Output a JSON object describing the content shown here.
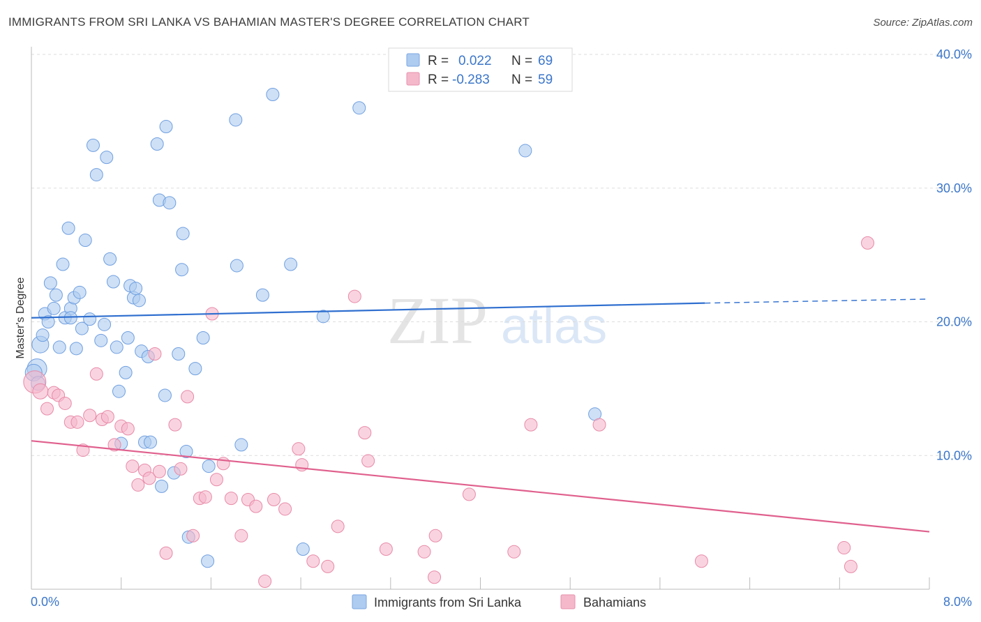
{
  "header": {
    "title": "IMMIGRANTS FROM SRI LANKA VS BAHAMIAN MASTER'S DEGREE CORRELATION CHART",
    "source": "Source: ZipAtlas.com"
  },
  "watermark": {
    "zip": "ZIP",
    "atlas": "atlas"
  },
  "stats_legend": {
    "r_label": "R =",
    "n_label": "N =",
    "rows": [
      {
        "r": "0.022",
        "n": "69",
        "color": "#aecbf0"
      },
      {
        "r": "-0.283",
        "n": "59",
        "color": "#f5b8cb"
      }
    ]
  },
  "chart_data": {
    "type": "scatter",
    "title": "IMMIGRANTS FROM SRI LANKA VS BAHAMIAN MASTER'S DEGREE CORRELATION CHART",
    "xlabel": "",
    "ylabel": "Master's Degree",
    "xlim": [
      0,
      8
    ],
    "ylim": [
      0,
      40
    ],
    "x_tick_labels": [
      "0.0%",
      "8.0%"
    ],
    "y_ticks": [
      10,
      20,
      30,
      40
    ],
    "y_tick_labels": [
      "10.0%",
      "20.0%",
      "30.0%",
      "40.0%"
    ],
    "grid": true,
    "legend_position": "bottom",
    "series": [
      {
        "name": "Immigrants from Sri Lanka",
        "color": "#6f9fe0",
        "fill": "#aecbf0",
        "trend": {
          "x": [
            0.0,
            6.0,
            8.0
          ],
          "y": [
            20.3,
            21.4,
            21.7
          ],
          "solid_until": 6.0,
          "color": "#2f6fcf"
        },
        "points": [
          [
            0.05,
            16.5,
            14
          ],
          [
            0.08,
            18.3,
            12
          ],
          [
            0.1,
            19.0,
            9
          ],
          [
            0.12,
            20.6,
            9
          ],
          [
            0.15,
            20.0,
            9
          ],
          [
            0.17,
            22.9,
            9
          ],
          [
            0.2,
            21.0,
            9
          ],
          [
            0.22,
            22.0,
            9
          ],
          [
            0.25,
            18.1,
            9
          ],
          [
            0.28,
            24.3,
            9
          ],
          [
            0.3,
            20.3,
            9
          ],
          [
            0.33,
            27.0,
            9
          ],
          [
            0.35,
            21.0,
            9
          ],
          [
            0.38,
            21.8,
            9
          ],
          [
            0.4,
            18.0,
            9
          ],
          [
            0.43,
            22.2,
            9
          ],
          [
            0.45,
            19.5,
            9
          ],
          [
            0.48,
            26.1,
            9
          ],
          [
            0.52,
            20.2,
            9
          ],
          [
            0.55,
            33.2,
            9
          ],
          [
            0.58,
            31.0,
            9
          ],
          [
            0.62,
            18.6,
            9
          ],
          [
            0.65,
            19.8,
            9
          ],
          [
            0.67,
            32.3,
            9
          ],
          [
            0.7,
            24.7,
            9
          ],
          [
            0.73,
            23.0,
            9
          ],
          [
            0.76,
            18.1,
            9
          ],
          [
            0.78,
            14.8,
            9
          ],
          [
            0.8,
            10.9,
            9
          ],
          [
            0.84,
            16.2,
            9
          ],
          [
            0.86,
            18.8,
            9
          ],
          [
            0.88,
            22.7,
            9
          ],
          [
            0.91,
            21.8,
            9
          ],
          [
            0.93,
            22.5,
            9
          ],
          [
            0.96,
            21.6,
            9
          ],
          [
            0.98,
            17.8,
            9
          ],
          [
            1.01,
            11.0,
            9
          ],
          [
            1.04,
            17.4,
            9
          ],
          [
            1.06,
            11.0,
            9
          ],
          [
            1.12,
            33.3,
            9
          ],
          [
            1.14,
            29.1,
            9
          ],
          [
            1.16,
            7.7,
            9
          ],
          [
            1.19,
            14.5,
            9
          ],
          [
            1.2,
            34.6,
            9
          ],
          [
            1.23,
            28.9,
            9
          ],
          [
            1.27,
            8.7,
            9
          ],
          [
            1.31,
            17.6,
            9
          ],
          [
            1.34,
            23.9,
            9
          ],
          [
            1.35,
            26.6,
            9
          ],
          [
            1.38,
            10.3,
            9
          ],
          [
            1.4,
            3.9,
            9
          ],
          [
            1.46,
            16.5,
            9
          ],
          [
            1.53,
            18.8,
            9
          ],
          [
            1.57,
            2.1,
            9
          ],
          [
            1.58,
            9.2,
            9
          ],
          [
            1.82,
            35.1,
            9
          ],
          [
            1.83,
            24.2,
            9
          ],
          [
            1.87,
            10.8,
            9
          ],
          [
            2.06,
            22.0,
            9
          ],
          [
            2.15,
            37.0,
            9
          ],
          [
            2.31,
            24.3,
            9
          ],
          [
            2.42,
            3.0,
            9
          ],
          [
            2.6,
            20.4,
            9
          ],
          [
            2.92,
            36.0,
            9
          ],
          [
            4.4,
            32.8,
            9
          ],
          [
            5.02,
            13.1,
            9
          ],
          [
            0.02,
            16.2,
            12
          ],
          [
            0.06,
            15.4,
            10
          ],
          [
            0.35,
            20.3,
            9
          ]
        ]
      },
      {
        "name": "Bahamians",
        "color": "#e88aa8",
        "fill": "#f5b8cb",
        "trend": {
          "x": [
            0.0,
            8.0
          ],
          "y": [
            11.1,
            4.3
          ],
          "solid_until": 8.0,
          "color": "#e0608d"
        },
        "points": [
          [
            0.03,
            15.5,
            16
          ],
          [
            0.08,
            14.8,
            11
          ],
          [
            0.14,
            13.5,
            9
          ],
          [
            0.2,
            14.7,
            9
          ],
          [
            0.24,
            14.5,
            9
          ],
          [
            0.3,
            13.9,
            9
          ],
          [
            0.35,
            12.5,
            9
          ],
          [
            0.41,
            12.5,
            9
          ],
          [
            0.46,
            10.4,
            9
          ],
          [
            0.52,
            13.0,
            9
          ],
          [
            0.58,
            16.1,
            9
          ],
          [
            0.63,
            12.7,
            9
          ],
          [
            0.68,
            12.9,
            9
          ],
          [
            0.74,
            10.8,
            9
          ],
          [
            0.8,
            12.2,
            9
          ],
          [
            0.86,
            12.0,
            9
          ],
          [
            0.9,
            9.2,
            9
          ],
          [
            0.95,
            7.8,
            9
          ],
          [
            1.01,
            8.9,
            9
          ],
          [
            1.05,
            8.3,
            9
          ],
          [
            1.1,
            17.6,
            9
          ],
          [
            1.14,
            8.8,
            9
          ],
          [
            1.2,
            2.7,
            9
          ],
          [
            1.28,
            12.3,
            9
          ],
          [
            1.33,
            9.0,
            9
          ],
          [
            1.39,
            14.4,
            9
          ],
          [
            1.44,
            4.0,
            9
          ],
          [
            1.5,
            6.8,
            9
          ],
          [
            1.55,
            6.9,
            9
          ],
          [
            1.61,
            20.6,
            9
          ],
          [
            1.65,
            8.2,
            9
          ],
          [
            1.71,
            9.4,
            9
          ],
          [
            1.78,
            6.8,
            9
          ],
          [
            1.87,
            4.0,
            9
          ],
          [
            1.93,
            6.7,
            9
          ],
          [
            2.0,
            6.2,
            9
          ],
          [
            2.08,
            0.6,
            9
          ],
          [
            2.16,
            6.7,
            9
          ],
          [
            2.26,
            6.0,
            9
          ],
          [
            2.38,
            10.5,
            9
          ],
          [
            2.41,
            9.3,
            9
          ],
          [
            2.51,
            2.1,
            9
          ],
          [
            2.64,
            1.7,
            9
          ],
          [
            2.73,
            4.7,
            9
          ],
          [
            2.88,
            21.9,
            9
          ],
          [
            2.97,
            11.7,
            9
          ],
          [
            3.0,
            9.6,
            9
          ],
          [
            3.16,
            3.0,
            9
          ],
          [
            3.5,
            2.8,
            9
          ],
          [
            3.59,
            0.9,
            9
          ],
          [
            3.6,
            4.0,
            9
          ],
          [
            3.9,
            7.1,
            9
          ],
          [
            4.3,
            2.8,
            9
          ],
          [
            4.45,
            12.3,
            9
          ],
          [
            5.06,
            12.3,
            9
          ],
          [
            5.97,
            2.1,
            9
          ],
          [
            7.24,
            3.1,
            9
          ],
          [
            7.3,
            1.7,
            9
          ],
          [
            7.45,
            25.9,
            9
          ]
        ]
      }
    ]
  }
}
